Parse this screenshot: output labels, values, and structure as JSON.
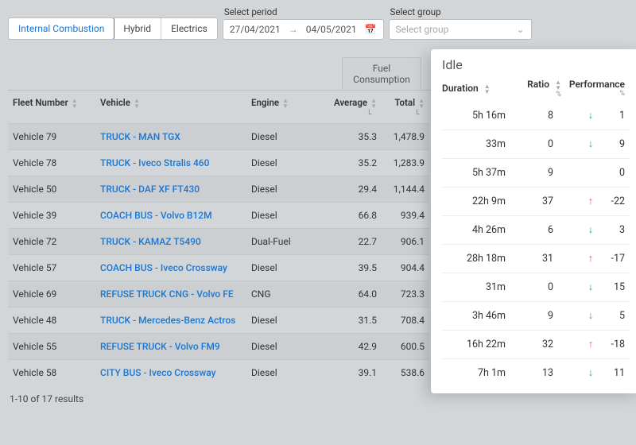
{
  "filters": {
    "tabs": [
      "Internal Combustion",
      "Hybrid",
      "Electrics"
    ],
    "active_tab": "Internal Combustion",
    "period_label": "Select period",
    "period_from": "27/04/2021",
    "period_to": "04/05/2021",
    "group_label": "Select group",
    "group_placeholder": "Select group"
  },
  "columns": {
    "fleet": "Fleet Number",
    "vehicle": "Vehicle",
    "engine": "Engine",
    "fuel_section": "Fuel Consumption",
    "avg": "Average",
    "avg_unit": "L",
    "total": "Total",
    "total_unit": "L"
  },
  "rows": [
    {
      "fleet": "Vehicle 79",
      "vehicle": "TRUCK - MAN TGX",
      "engine": "Diesel",
      "avg": "35.3",
      "total": "1,478.9"
    },
    {
      "fleet": "Vehicle 78",
      "vehicle": "TRUCK - Iveco Stralis 460",
      "engine": "Diesel",
      "avg": "35.2",
      "total": "1,283.9"
    },
    {
      "fleet": "Vehicle 50",
      "vehicle": "TRUCK - DAF XF FT430",
      "engine": "Diesel",
      "avg": "29.4",
      "total": "1,144.4"
    },
    {
      "fleet": "Vehicle 39",
      "vehicle": "COACH BUS - Volvo B12M",
      "engine": "Diesel",
      "avg": "66.8",
      "total": "939.4"
    },
    {
      "fleet": "Vehicle 72",
      "vehicle": "TRUCK - KAMAZ T5490",
      "engine": "Dual-Fuel",
      "avg": "22.7",
      "total": "906.1"
    },
    {
      "fleet": "Vehicle 57",
      "vehicle": "COACH BUS - Iveco Crossway",
      "engine": "Diesel",
      "avg": "39.5",
      "total": "904.4"
    },
    {
      "fleet": "Vehicle 69",
      "vehicle": "REFUSE TRUCK CNG - Volvo FE",
      "engine": "CNG",
      "avg": "64.0",
      "total": "723.3"
    },
    {
      "fleet": "Vehicle 48",
      "vehicle": "TRUCK - Mercedes-Benz Actros",
      "engine": "Diesel",
      "avg": "31.5",
      "total": "708.4"
    },
    {
      "fleet": "Vehicle 55",
      "vehicle": "REFUSE TRUCK - Volvo FM9",
      "engine": "Diesel",
      "avg": "42.9",
      "total": "600.5"
    },
    {
      "fleet": "Vehicle 58",
      "vehicle": "CITY BUS - Iveco Crossway",
      "engine": "Diesel",
      "avg": "39.1",
      "total": "538.6"
    }
  ],
  "pager": "1-10 of 17 results",
  "idle": {
    "title": "Idle",
    "cols": {
      "duration": "Duration",
      "ratio": "Ratio",
      "ratio_unit": "%",
      "perf": "Performance",
      "perf_unit": "%"
    },
    "rows": [
      {
        "duration": "5h 16m",
        "ratio": "8",
        "dir": "down",
        "perf": "1"
      },
      {
        "duration": "33m",
        "ratio": "0",
        "dir": "down",
        "perf": "9"
      },
      {
        "duration": "5h 37m",
        "ratio": "9",
        "dir": "none",
        "perf": "0"
      },
      {
        "duration": "22h 9m",
        "ratio": "37",
        "dir": "up",
        "perf": "-22"
      },
      {
        "duration": "4h 26m",
        "ratio": "6",
        "dir": "down",
        "perf": "3"
      },
      {
        "duration": "28h 18m",
        "ratio": "31",
        "dir": "up",
        "perf": "-17"
      },
      {
        "duration": "31m",
        "ratio": "0",
        "dir": "down",
        "perf": "15"
      },
      {
        "duration": "3h 46m",
        "ratio": "9",
        "dir": "down",
        "perf": "5"
      },
      {
        "duration": "16h 22m",
        "ratio": "32",
        "dir": "up",
        "perf": "-18"
      },
      {
        "duration": "7h 1m",
        "ratio": "13",
        "dir": "down",
        "perf": "11"
      }
    ]
  },
  "colors": {
    "link": "#1976d2",
    "up": "#d9534f",
    "down": "#2e9e5b"
  }
}
